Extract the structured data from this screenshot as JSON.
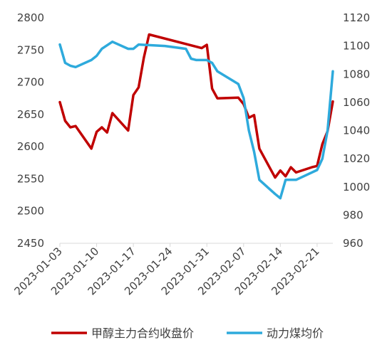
{
  "chart_data": {
    "type": "line",
    "x_ticks": [
      "2023-01-03",
      "2023-01-10",
      "2023-01-17",
      "2023-01-24",
      "2023-01-31",
      "2023-02-07",
      "2023-02-14",
      "2023-02-21"
    ],
    "x_range": [
      "2023-01-03",
      "2023-02-24"
    ],
    "y_left": {
      "min": 2450,
      "max": 2800,
      "step": 50,
      "ticks": [
        "2450",
        "2500",
        "2550",
        "2600",
        "2650",
        "2700",
        "2750",
        "2800"
      ]
    },
    "y_right": {
      "min": 960,
      "max": 1120,
      "step": 20,
      "ticks": [
        "960",
        "980",
        "1000",
        "1020",
        "1040",
        "1060",
        "1080",
        "1100",
        "1120"
      ]
    },
    "legend_position": "bottom",
    "grid": false,
    "series": [
      {
        "name": "甲醇主力合约收盘价",
        "color": "#c00000",
        "axis": "left",
        "points": [
          [
            "2023-01-03",
            2669
          ],
          [
            "2023-01-04",
            2640
          ],
          [
            "2023-01-05",
            2630
          ],
          [
            "2023-01-06",
            2632
          ],
          [
            "2023-01-09",
            2597
          ],
          [
            "2023-01-10",
            2623
          ],
          [
            "2023-01-11",
            2630
          ],
          [
            "2023-01-12",
            2622
          ],
          [
            "2023-01-13",
            2652
          ],
          [
            "2023-01-16",
            2625
          ],
          [
            "2023-01-17",
            2680
          ],
          [
            "2023-01-18",
            2692
          ],
          [
            "2023-01-19",
            2738
          ],
          [
            "2023-01-20",
            2774
          ],
          [
            "2023-01-30",
            2753
          ],
          [
            "2023-01-31",
            2758
          ],
          [
            "2023-02-01",
            2690
          ],
          [
            "2023-02-02",
            2675
          ],
          [
            "2023-02-06",
            2676
          ],
          [
            "2023-02-07",
            2666
          ],
          [
            "2023-02-08",
            2645
          ],
          [
            "2023-02-09",
            2649
          ],
          [
            "2023-02-10",
            2597
          ],
          [
            "2023-02-13",
            2552
          ],
          [
            "2023-02-14",
            2563
          ],
          [
            "2023-02-15",
            2554
          ],
          [
            "2023-02-16",
            2568
          ],
          [
            "2023-02-17",
            2560
          ],
          [
            "2023-02-20",
            2568
          ],
          [
            "2023-02-21",
            2570
          ],
          [
            "2023-02-22",
            2604
          ],
          [
            "2023-02-23",
            2624
          ],
          [
            "2023-02-24",
            2670
          ]
        ]
      },
      {
        "name": "动力煤均价",
        "color": "#2eaadc",
        "axis": "right",
        "points": [
          [
            "2023-01-03",
            1101
          ],
          [
            "2023-01-04",
            1088
          ],
          [
            "2023-01-05",
            1086
          ],
          [
            "2023-01-06",
            1085
          ],
          [
            "2023-01-09",
            1090
          ],
          [
            "2023-01-10",
            1093
          ],
          [
            "2023-01-11",
            1098
          ],
          [
            "2023-01-13",
            1103
          ],
          [
            "2023-01-16",
            1098
          ],
          [
            "2023-01-17",
            1098
          ],
          [
            "2023-01-18",
            1101
          ],
          [
            "2023-01-23",
            1100
          ],
          [
            "2023-01-27",
            1098
          ],
          [
            "2023-01-28",
            1091
          ],
          [
            "2023-01-29",
            1090
          ],
          [
            "2023-01-31",
            1090
          ],
          [
            "2023-02-01",
            1088
          ],
          [
            "2023-02-02",
            1082
          ],
          [
            "2023-02-06",
            1073
          ],
          [
            "2023-02-07",
            1063
          ],
          [
            "2023-02-08",
            1040
          ],
          [
            "2023-02-09",
            1025
          ],
          [
            "2023-02-10",
            1005
          ],
          [
            "2023-02-13",
            995
          ],
          [
            "2023-02-14",
            992
          ],
          [
            "2023-02-15",
            1005
          ],
          [
            "2023-02-17",
            1005
          ],
          [
            "2023-02-21",
            1012
          ],
          [
            "2023-02-22",
            1020
          ],
          [
            "2023-02-23",
            1040
          ],
          [
            "2023-02-24",
            1082
          ]
        ]
      }
    ]
  }
}
